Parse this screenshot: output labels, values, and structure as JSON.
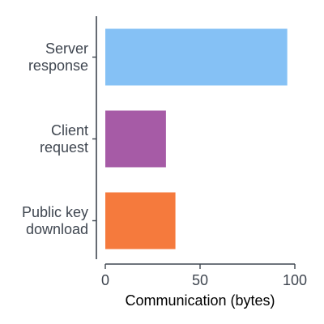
{
  "chart_data": {
    "type": "bar",
    "orientation": "horizontal",
    "categories": [
      [
        "Server",
        "response"
      ],
      [
        "Client",
        "request"
      ],
      [
        "Public key",
        "download"
      ]
    ],
    "values": [
      96,
      32,
      37
    ],
    "colors": [
      "#85c1f5",
      "#a65ba6",
      "#f57a3d"
    ],
    "xlabel": "Communication (bytes)",
    "ylabel": "",
    "title": "",
    "xlim": [
      0,
      100
    ],
    "xticks": [
      0,
      50,
      100
    ],
    "grid": false,
    "legend": "none"
  }
}
